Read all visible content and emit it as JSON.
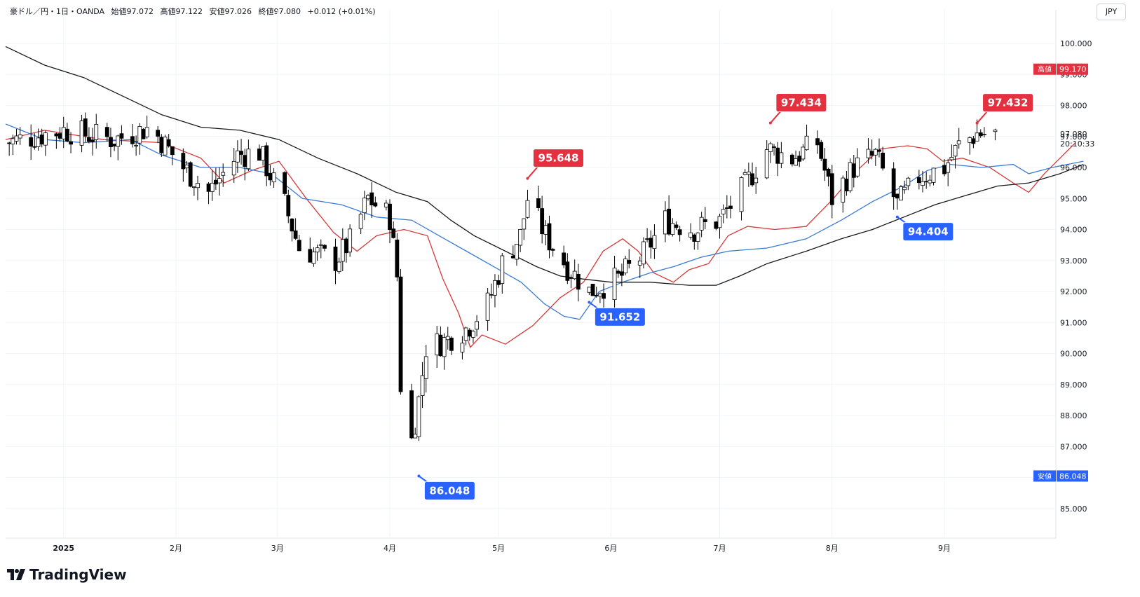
{
  "header": {
    "symbol": "豪ドル／円・1日・OANDA",
    "open": "始値97.072",
    "high": "高値97.122",
    "low": "安値97.026",
    "close": "終値97.080",
    "change": "+0.012 (+0.01%)"
  },
  "currency": "JPY",
  "brand": "TradingView",
  "countdown": "20:10:33",
  "colors": {
    "up": "#ffffff",
    "down": "#000000",
    "ma_short": "#d43a3a",
    "ma_mid": "#3a7bd5",
    "ma_long": "#1a1a1a",
    "high_badge": "#e5303f",
    "low_badge": "#2962ff"
  },
  "chart_data": {
    "type": "candlestick",
    "title": "",
    "xlabel": "",
    "ylabel": "",
    "ylim": [
      84.5,
      100.8
    ],
    "y_ticks": [
      "85.000",
      "86.000",
      "87.000",
      "88.000",
      "89.000",
      "90.000",
      "91.000",
      "92.000",
      "93.000",
      "94.000",
      "95.000",
      "96.000",
      "97.000",
      "98.000",
      "99.000",
      "100.000"
    ],
    "x_ticks": [
      {
        "label": "2025",
        "date": "2025-01-01"
      },
      {
        "label": "2月",
        "date": "2025-02-01"
      },
      {
        "label": "3月",
        "date": "2025-03-01"
      },
      {
        "label": "4月",
        "date": "2025-04-01"
      },
      {
        "label": "5月",
        "date": "2025-05-01"
      },
      {
        "label": "6月",
        "date": "2025-06-01"
      },
      {
        "label": "7月",
        "date": "2025-07-01"
      },
      {
        "label": "8月",
        "date": "2025-08-01"
      },
      {
        "label": "9月",
        "date": "2025-09-01"
      }
    ],
    "x_range": [
      "2024-12-16",
      "2025-09-18"
    ],
    "price_labels": [
      {
        "tag": "高値",
        "value": "99.170",
        "y": 99.17,
        "kind": "high"
      },
      {
        "tag": "安値",
        "value": "86.048",
        "y": 86.048,
        "kind": "low"
      }
    ],
    "current_price": {
      "value": "97.080",
      "y": 97.08
    },
    "annotations": [
      {
        "label": "97.434",
        "date": "2025-07-15",
        "value": 97.434,
        "kind": "high"
      },
      {
        "label": "97.432",
        "date": "2025-09-10",
        "value": 97.432,
        "kind": "high"
      },
      {
        "label": "95.648",
        "date": "2025-05-09",
        "value": 95.648,
        "kind": "high"
      },
      {
        "label": "94.404",
        "date": "2025-08-19",
        "value": 94.404,
        "kind": "low"
      },
      {
        "label": "91.652",
        "date": "2025-05-26",
        "value": 91.652,
        "kind": "low"
      },
      {
        "label": "86.048",
        "date": "2025-04-09",
        "value": 86.048,
        "kind": "low"
      }
    ],
    "key_closes": [
      {
        "date": "2024-12-16",
        "close": 96.8
      },
      {
        "date": "2025-01-01",
        "close": 97.2
      },
      {
        "date": "2025-01-15",
        "close": 96.9
      },
      {
        "date": "2025-01-25",
        "close": 97.3
      },
      {
        "date": "2025-02-03",
        "close": 96.0
      },
      {
        "date": "2025-02-10",
        "close": 95.2
      },
      {
        "date": "2025-02-18",
        "close": 96.4
      },
      {
        "date": "2025-02-24",
        "close": 96.5
      },
      {
        "date": "2025-03-03",
        "close": 94.8
      },
      {
        "date": "2025-03-07",
        "close": 93.4
      },
      {
        "date": "2025-03-12",
        "close": 93.2
      },
      {
        "date": "2025-03-17",
        "close": 93.0
      },
      {
        "date": "2025-03-21",
        "close": 93.6
      },
      {
        "date": "2025-03-26",
        "close": 95.0
      },
      {
        "date": "2025-04-01",
        "close": 94.4
      },
      {
        "date": "2025-04-03",
        "close": 92.5
      },
      {
        "date": "2025-04-04",
        "close": 89.0
      },
      {
        "date": "2025-04-07",
        "close": 87.2
      },
      {
        "date": "2025-04-09",
        "close": 88.5
      },
      {
        "date": "2025-04-11",
        "close": 90.2
      },
      {
        "date": "2025-04-16",
        "close": 90.4
      },
      {
        "date": "2025-04-22",
        "close": 90.8
      },
      {
        "date": "2025-04-28",
        "close": 91.6
      },
      {
        "date": "2025-05-02",
        "close": 92.9
      },
      {
        "date": "2025-05-07",
        "close": 93.8
      },
      {
        "date": "2025-05-09",
        "close": 95.0
      },
      {
        "date": "2025-05-14",
        "close": 93.8
      },
      {
        "date": "2025-05-20",
        "close": 92.8
      },
      {
        "date": "2025-05-26",
        "close": 92.0
      },
      {
        "date": "2025-06-03",
        "close": 92.4
      },
      {
        "date": "2025-06-10",
        "close": 93.2
      },
      {
        "date": "2025-06-16",
        "close": 94.3
      },
      {
        "date": "2025-06-24",
        "close": 94.0
      },
      {
        "date": "2025-07-01",
        "close": 94.3
      },
      {
        "date": "2025-07-08",
        "close": 95.4
      },
      {
        "date": "2025-07-14",
        "close": 96.6
      },
      {
        "date": "2025-07-21",
        "close": 96.3
      },
      {
        "date": "2025-07-28",
        "close": 96.8
      },
      {
        "date": "2025-08-01",
        "close": 95.0
      },
      {
        "date": "2025-08-07",
        "close": 96.0
      },
      {
        "date": "2025-08-13",
        "close": 96.4
      },
      {
        "date": "2025-08-19",
        "close": 94.8
      },
      {
        "date": "2025-08-25",
        "close": 95.7
      },
      {
        "date": "2025-09-01",
        "close": 96.0
      },
      {
        "date": "2025-09-05",
        "close": 96.7
      },
      {
        "date": "2025-09-10",
        "close": 97.1
      },
      {
        "date": "2025-09-15",
        "close": 97.08
      }
    ],
    "moving_averages": [
      {
        "color": "#d43a3a",
        "points": [
          [
            0,
            96.9
          ],
          [
            10,
            97.2
          ],
          [
            25,
            96.9
          ],
          [
            40,
            96.8
          ],
          [
            50,
            96.3
          ],
          [
            56,
            95.5
          ],
          [
            63,
            95.9
          ],
          [
            70,
            96.2
          ],
          [
            77,
            95.0
          ],
          [
            84,
            93.9
          ],
          [
            90,
            93.3
          ],
          [
            95,
            93.8
          ],
          [
            102,
            94.0
          ],
          [
            108,
            93.8
          ],
          [
            112,
            92.4
          ],
          [
            116,
            91.3
          ],
          [
            119,
            90.2
          ],
          [
            122,
            90.6
          ],
          [
            128,
            90.3
          ],
          [
            135,
            90.9
          ],
          [
            142,
            91.8
          ],
          [
            148,
            92.3
          ],
          [
            153,
            93.3
          ],
          [
            158,
            93.7
          ],
          [
            162,
            93.3
          ],
          [
            166,
            92.6
          ],
          [
            171,
            92.3
          ],
          [
            175,
            92.7
          ],
          [
            180,
            92.9
          ],
          [
            185,
            93.8
          ],
          [
            190,
            94.1
          ],
          [
            197,
            94.0
          ],
          [
            205,
            94.1
          ],
          [
            212,
            95.0
          ],
          [
            218,
            95.9
          ],
          [
            224,
            96.6
          ],
          [
            231,
            96.7
          ],
          [
            236,
            96.6
          ],
          [
            240,
            96.2
          ],
          [
            245,
            96.3
          ],
          [
            252,
            96.0
          ],
          [
            258,
            95.5
          ],
          [
            262,
            95.2
          ],
          [
            266,
            95.8
          ],
          [
            270,
            96.3
          ],
          [
            274,
            96.8
          ]
        ]
      },
      {
        "color": "#3a7bd5",
        "points": [
          [
            0,
            97.4
          ],
          [
            10,
            96.9
          ],
          [
            20,
            96.8
          ],
          [
            32,
            96.9
          ],
          [
            40,
            96.4
          ],
          [
            50,
            96.0
          ],
          [
            60,
            96.0
          ],
          [
            68,
            95.8
          ],
          [
            76,
            95.0
          ],
          [
            86,
            94.8
          ],
          [
            95,
            94.4
          ],
          [
            104,
            94.3
          ],
          [
            111,
            93.8
          ],
          [
            118,
            93.3
          ],
          [
            125,
            92.8
          ],
          [
            132,
            92.3
          ],
          [
            138,
            91.6
          ],
          [
            143,
            91.2
          ],
          [
            147,
            91.1
          ],
          [
            152,
            92.0
          ],
          [
            158,
            92.3
          ],
          [
            165,
            92.6
          ],
          [
            171,
            92.8
          ],
          [
            178,
            93.1
          ],
          [
            185,
            93.3
          ],
          [
            195,
            93.4
          ],
          [
            205,
            93.7
          ],
          [
            214,
            94.3
          ],
          [
            222,
            94.9
          ],
          [
            230,
            95.4
          ],
          [
            236,
            95.9
          ],
          [
            242,
            96.1
          ],
          [
            250,
            96.0
          ],
          [
            258,
            96.1
          ],
          [
            262,
            95.8
          ],
          [
            268,
            96.0
          ],
          [
            276,
            96.2
          ]
        ]
      },
      {
        "color": "#1a1a1a",
        "points": [
          [
            0,
            99.9
          ],
          [
            10,
            99.3
          ],
          [
            20,
            98.9
          ],
          [
            30,
            98.3
          ],
          [
            40,
            97.7
          ],
          [
            50,
            97.3
          ],
          [
            60,
            97.2
          ],
          [
            70,
            96.9
          ],
          [
            80,
            96.3
          ],
          [
            90,
            95.8
          ],
          [
            100,
            95.2
          ],
          [
            108,
            94.9
          ],
          [
            114,
            94.3
          ],
          [
            120,
            93.8
          ],
          [
            128,
            93.3
          ],
          [
            136,
            92.8
          ],
          [
            142,
            92.5
          ],
          [
            148,
            92.4
          ],
          [
            155,
            92.3
          ],
          [
            165,
            92.3
          ],
          [
            175,
            92.2
          ],
          [
            182,
            92.2
          ],
          [
            188,
            92.5
          ],
          [
            195,
            92.9
          ],
          [
            205,
            93.3
          ],
          [
            214,
            93.7
          ],
          [
            222,
            94.0
          ],
          [
            230,
            94.4
          ],
          [
            238,
            94.8
          ],
          [
            246,
            95.1
          ],
          [
            254,
            95.4
          ],
          [
            262,
            95.5
          ],
          [
            270,
            95.8
          ],
          [
            276,
            96.1
          ]
        ]
      }
    ]
  }
}
